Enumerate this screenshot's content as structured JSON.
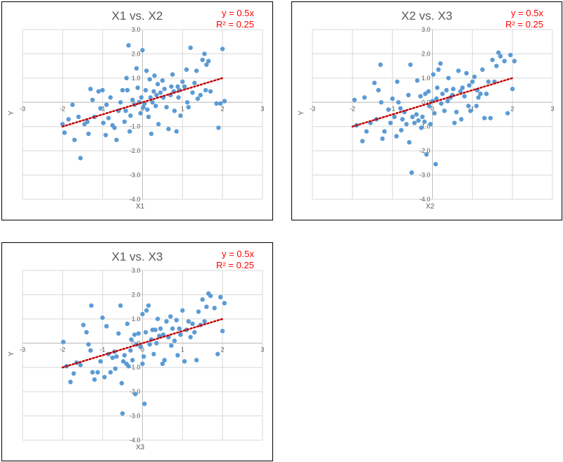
{
  "chart_data": [
    {
      "type": "scatter",
      "title": "X1 vs. X2",
      "xlabel": "X1",
      "ylabel": "Y",
      "xlim": [
        -3,
        3
      ],
      "ylim": [
        -4,
        3
      ],
      "xticks": [
        "-3",
        "-2",
        "-1",
        "0",
        "1",
        "2",
        "3"
      ],
      "yticks": [
        "3.0",
        "2.0",
        "1.0",
        "0.0",
        "-1.0",
        "-2.0",
        "-3.0",
        "-4.0"
      ],
      "grid": true,
      "trendline": {
        "equation": "y = 0.5x",
        "r2": "R² = 0.25",
        "slope": 0.5,
        "x_range": [
          -2,
          2
        ],
        "color": "#c00000"
      },
      "marker_color": "#5b9bd5",
      "points": [
        [
          -2.0,
          -0.9
        ],
        [
          -1.95,
          -1.25
        ],
        [
          -1.85,
          -0.7
        ],
        [
          -1.75,
          -0.1
        ],
        [
          -1.7,
          -1.55
        ],
        [
          -1.6,
          -0.6
        ],
        [
          -1.55,
          -2.3
        ],
        [
          -1.45,
          -0.9
        ],
        [
          -1.38,
          -0.8
        ],
        [
          -1.35,
          -1.3
        ],
        [
          -1.3,
          0.55
        ],
        [
          -1.25,
          0.1
        ],
        [
          -1.2,
          -0.6
        ],
        [
          -1.1,
          0.45
        ],
        [
          -1.05,
          -0.25
        ],
        [
          -1.0,
          0.5
        ],
        [
          -0.98,
          -0.85
        ],
        [
          -0.92,
          -1.35
        ],
        [
          -0.9,
          -0.1
        ],
        [
          -0.85,
          -0.65
        ],
        [
          -0.8,
          0.2
        ],
        [
          -0.75,
          -0.95
        ],
        [
          -0.7,
          -1.05
        ],
        [
          -0.65,
          -1.55
        ],
        [
          -0.6,
          -0.35
        ],
        [
          -0.55,
          0.0
        ],
        [
          -0.5,
          0.5
        ],
        [
          -0.45,
          -0.8
        ],
        [
          -0.42,
          -0.35
        ],
        [
          -0.4,
          1.0
        ],
        [
          -0.38,
          0.5
        ],
        [
          -0.35,
          2.35
        ],
        [
          -0.32,
          -1.2
        ],
        [
          -0.3,
          -0.55
        ],
        [
          -0.25,
          0.1
        ],
        [
          -0.2,
          -0.1
        ],
        [
          -0.15,
          1.4
        ],
        [
          -0.12,
          0.6
        ],
        [
          -0.08,
          0.0
        ],
        [
          -0.05,
          -0.45
        ],
        [
          -0.03,
          0.2
        ],
        [
          0.0,
          2.15
        ],
        [
          0.02,
          -0.2
        ],
        [
          0.05,
          -0.05
        ],
        [
          0.08,
          0.5
        ],
        [
          0.1,
          1.3
        ],
        [
          0.12,
          -0.3
        ],
        [
          0.15,
          -0.6
        ],
        [
          0.18,
          0.95
        ],
        [
          0.2,
          0.2
        ],
        [
          0.22,
          -1.3
        ],
        [
          0.25,
          0.0
        ],
        [
          0.28,
          0.45
        ],
        [
          0.3,
          1.1
        ],
        [
          0.33,
          -0.15
        ],
        [
          0.35,
          0.3
        ],
        [
          0.38,
          0.75
        ],
        [
          0.4,
          -0.9
        ],
        [
          0.45,
          0.4
        ],
        [
          0.5,
          0.9
        ],
        [
          0.52,
          0.2
        ],
        [
          0.55,
          0.55
        ],
        [
          0.6,
          -0.2
        ],
        [
          0.65,
          -1.1
        ],
        [
          0.7,
          0.3
        ],
        [
          0.72,
          0.65
        ],
        [
          0.75,
          1.15
        ],
        [
          0.78,
          0.45
        ],
        [
          0.8,
          -0.35
        ],
        [
          0.85,
          -1.2
        ],
        [
          0.88,
          0.65
        ],
        [
          0.9,
          0.2
        ],
        [
          0.92,
          0.5
        ],
        [
          0.95,
          -0.55
        ],
        [
          1.0,
          0.85
        ],
        [
          1.05,
          0.65
        ],
        [
          1.1,
          1.35
        ],
        [
          1.12,
          0.0
        ],
        [
          1.15,
          -0.2
        ],
        [
          1.2,
          2.25
        ],
        [
          1.25,
          0.4
        ],
        [
          1.3,
          0.8
        ],
        [
          1.35,
          1.3
        ],
        [
          1.38,
          0.15
        ],
        [
          1.45,
          0.3
        ],
        [
          1.5,
          1.75
        ],
        [
          1.55,
          2.0
        ],
        [
          1.58,
          0.5
        ],
        [
          1.6,
          1.55
        ],
        [
          1.65,
          1.7
        ],
        [
          1.7,
          0.45
        ],
        [
          1.85,
          -0.05
        ],
        [
          1.9,
          -1.05
        ],
        [
          1.95,
          -0.05
        ],
        [
          2.0,
          2.2
        ],
        [
          2.05,
          0.05
        ]
      ]
    },
    {
      "type": "scatter",
      "title": "X2 vs. X3",
      "xlabel": "X2",
      "ylabel": "Y",
      "xlim": [
        -3,
        3
      ],
      "ylim": [
        -4,
        3
      ],
      "xticks": [
        "-3",
        "-2",
        "-1",
        "0",
        "1",
        "2",
        "3"
      ],
      "yticks": [
        "3.0",
        "2.0",
        "1.0",
        "0.0",
        "-1.0",
        "-2.0",
        "-3.0",
        "-4.0"
      ],
      "grid": true,
      "trendline": {
        "equation": "y = 0.5x",
        "r2": "R² = 0.25",
        "slope": 0.5,
        "x_range": [
          -2,
          2
        ],
        "color": "#c00000"
      },
      "marker_color": "#5b9bd5",
      "points": [
        [
          -1.95,
          0.1
        ],
        [
          -1.9,
          -0.95
        ],
        [
          -1.75,
          -1.6
        ],
        [
          -1.7,
          0.2
        ],
        [
          -1.65,
          -1.2
        ],
        [
          -1.55,
          -0.85
        ],
        [
          -1.45,
          0.8
        ],
        [
          -1.4,
          -0.7
        ],
        [
          -1.35,
          0.5
        ],
        [
          -1.3,
          1.55
        ],
        [
          -1.28,
          0.0
        ],
        [
          -1.25,
          -1.5
        ],
        [
          -1.2,
          -1.2
        ],
        [
          -1.1,
          -0.3
        ],
        [
          -1.05,
          -0.85
        ],
        [
          -1.0,
          0.15
        ],
        [
          -0.95,
          -0.6
        ],
        [
          -0.9,
          -1.4
        ],
        [
          -0.88,
          0.85
        ],
        [
          -0.85,
          0.0
        ],
        [
          -0.8,
          -0.25
        ],
        [
          -0.78,
          -1.15
        ],
        [
          -0.75,
          -0.7
        ],
        [
          -0.7,
          -0.4
        ],
        [
          -0.65,
          -0.9
        ],
        [
          -0.6,
          0.3
        ],
        [
          -0.58,
          -1.65
        ],
        [
          -0.55,
          1.55
        ],
        [
          -0.52,
          -2.9
        ],
        [
          -0.5,
          -0.6
        ],
        [
          -0.45,
          -0.85
        ],
        [
          -0.4,
          -0.5
        ],
        [
          -0.38,
          0.9
        ],
        [
          -0.35,
          -0.75
        ],
        [
          -0.3,
          0.25
        ],
        [
          -0.28,
          -1.05
        ],
        [
          -0.25,
          -0.6
        ],
        [
          -0.2,
          -0.8
        ],
        [
          -0.18,
          0.35
        ],
        [
          -0.15,
          -2.15
        ],
        [
          -0.1,
          0.45
        ],
        [
          -0.08,
          -0.15
        ],
        [
          -0.05,
          -0.9
        ],
        [
          0.0,
          0.05
        ],
        [
          0.02,
          1.15
        ],
        [
          0.05,
          -0.45
        ],
        [
          0.08,
          -2.55
        ],
        [
          0.1,
          0.15
        ],
        [
          0.12,
          0.6
        ],
        [
          0.15,
          1.35
        ],
        [
          0.2,
          1.6
        ],
        [
          0.22,
          -0.05
        ],
        [
          0.25,
          0.35
        ],
        [
          0.3,
          -0.35
        ],
        [
          0.35,
          0.5
        ],
        [
          0.38,
          0.05
        ],
        [
          0.4,
          1.0
        ],
        [
          0.45,
          0.2
        ],
        [
          0.5,
          0.3
        ],
        [
          0.52,
          0.55
        ],
        [
          0.55,
          -0.85
        ],
        [
          0.6,
          -0.4
        ],
        [
          0.65,
          1.3
        ],
        [
          0.7,
          0.45
        ],
        [
          0.72,
          -0.7
        ],
        [
          0.75,
          0.6
        ],
        [
          0.8,
          0.25
        ],
        [
          0.85,
          1.2
        ],
        [
          0.9,
          -0.15
        ],
        [
          0.92,
          0.7
        ],
        [
          0.95,
          -0.35
        ],
        [
          1.0,
          0.85
        ],
        [
          1.05,
          1.05
        ],
        [
          1.1,
          -0.15
        ],
        [
          1.12,
          0.5
        ],
        [
          1.15,
          0.2
        ],
        [
          1.2,
          0.35
        ],
        [
          1.25,
          1.35
        ],
        [
          1.3,
          -0.65
        ],
        [
          1.35,
          0.35
        ],
        [
          1.4,
          0.85
        ],
        [
          1.45,
          -0.65
        ],
        [
          1.5,
          1.75
        ],
        [
          1.55,
          0.85
        ],
        [
          1.6,
          1.5
        ],
        [
          1.65,
          2.05
        ],
        [
          1.7,
          1.9
        ],
        [
          1.8,
          1.7
        ],
        [
          1.88,
          -0.45
        ],
        [
          1.95,
          1.95
        ],
        [
          2.0,
          0.55
        ],
        [
          2.05,
          1.7
        ]
      ]
    },
    {
      "type": "scatter",
      "title": "X1 vs. X3",
      "xlabel": "X3",
      "ylabel": "Y",
      "xlim": [
        -3,
        3
      ],
      "ylim": [
        -4,
        3
      ],
      "xticks": [
        "-3",
        "-2",
        "-1",
        "0",
        "1",
        "2",
        "3"
      ],
      "yticks": [
        "3.0",
        "2.0",
        "1.0",
        "0.0",
        "-1.0",
        "-2.0",
        "-3.0",
        "-4.0"
      ],
      "grid": true,
      "trendline": {
        "equation": "y = 0.5x",
        "r2": "R² = 0.25",
        "slope": 0.5,
        "x_range": [
          -2,
          2
        ],
        "color": "#c00000"
      },
      "marker_color": "#5b9bd5",
      "points": [
        [
          -1.98,
          0.05
        ],
        [
          -1.9,
          -0.95
        ],
        [
          -1.8,
          -1.6
        ],
        [
          -1.72,
          -1.25
        ],
        [
          -1.65,
          -0.8
        ],
        [
          -1.55,
          -0.9
        ],
        [
          -1.48,
          0.75
        ],
        [
          -1.4,
          0.45
        ],
        [
          -1.35,
          -0.05
        ],
        [
          -1.3,
          -0.3
        ],
        [
          -1.28,
          1.55
        ],
        [
          -1.25,
          -1.2
        ],
        [
          -1.2,
          -1.5
        ],
        [
          -1.12,
          -1.2
        ],
        [
          -1.05,
          -0.75
        ],
        [
          -1.0,
          1.05
        ],
        [
          -0.95,
          -1.4
        ],
        [
          -0.9,
          0.7
        ],
        [
          -0.85,
          -0.45
        ],
        [
          -0.8,
          -1.2
        ],
        [
          -0.75,
          -0.6
        ],
        [
          -0.7,
          -0.35
        ],
        [
          -0.68,
          -1.05
        ],
        [
          -0.65,
          -0.55
        ],
        [
          -0.6,
          0.4
        ],
        [
          -0.55,
          1.55
        ],
        [
          -0.52,
          -1.65
        ],
        [
          -0.5,
          -2.9
        ],
        [
          -0.48,
          -0.75
        ],
        [
          -0.45,
          -0.5
        ],
        [
          -0.4,
          -0.85
        ],
        [
          -0.38,
          0.8
        ],
        [
          -0.35,
          -0.95
        ],
        [
          -0.3,
          -0.3
        ],
        [
          -0.28,
          0.15
        ],
        [
          -0.25,
          -0.7
        ],
        [
          -0.2,
          0.35
        ],
        [
          -0.18,
          -2.1
        ],
        [
          -0.15,
          -0.05
        ],
        [
          -0.1,
          0.4
        ],
        [
          -0.05,
          -0.15
        ],
        [
          0.0,
          -0.85
        ],
        [
          0.0,
          1.2
        ],
        [
          0.03,
          -0.55
        ],
        [
          0.05,
          -2.5
        ],
        [
          0.08,
          0.45
        ],
        [
          0.1,
          1.35
        ],
        [
          0.15,
          1.55
        ],
        [
          0.18,
          -0.05
        ],
        [
          0.22,
          0.15
        ],
        [
          0.25,
          0.55
        ],
        [
          0.28,
          -0.45
        ],
        [
          0.32,
          0.55
        ],
        [
          0.35,
          0.0
        ],
        [
          0.38,
          1.0
        ],
        [
          0.42,
          0.3
        ],
        [
          0.45,
          0.6
        ],
        [
          0.5,
          -0.85
        ],
        [
          0.52,
          0.35
        ],
        [
          0.55,
          -0.7
        ],
        [
          0.6,
          0.9
        ],
        [
          0.65,
          0.25
        ],
        [
          0.7,
          1.1
        ],
        [
          0.72,
          -0.1
        ],
        [
          0.75,
          0.6
        ],
        [
          0.8,
          0.1
        ],
        [
          0.85,
          0.95
        ],
        [
          0.88,
          -0.5
        ],
        [
          0.92,
          0.6
        ],
        [
          0.95,
          0.35
        ],
        [
          1.0,
          1.35
        ],
        [
          1.05,
          -0.75
        ],
        [
          1.1,
          0.55
        ],
        [
          1.15,
          0.9
        ],
        [
          1.2,
          0.25
        ],
        [
          1.25,
          0.8
        ],
        [
          1.3,
          0.45
        ],
        [
          1.35,
          -0.7
        ],
        [
          1.4,
          1.3
        ],
        [
          1.45,
          0.75
        ],
        [
          1.5,
          1.8
        ],
        [
          1.55,
          0.9
        ],
        [
          1.6,
          1.5
        ],
        [
          1.65,
          2.05
        ],
        [
          1.7,
          1.95
        ],
        [
          1.8,
          1.45
        ],
        [
          1.88,
          -0.45
        ],
        [
          1.95,
          1.9
        ],
        [
          2.0,
          0.5
        ],
        [
          2.05,
          1.65
        ]
      ]
    }
  ]
}
